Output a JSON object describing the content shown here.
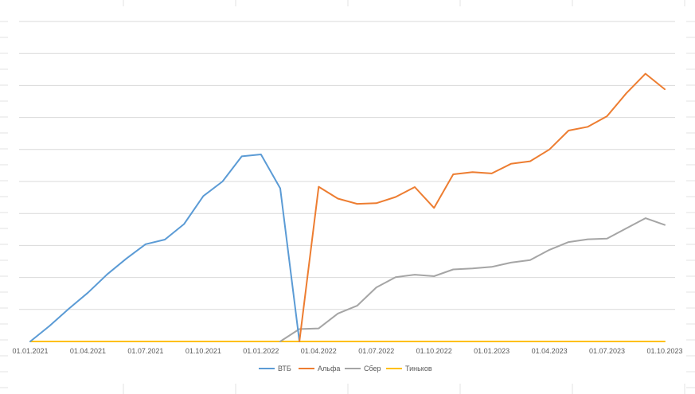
{
  "chart_data": {
    "type": "line",
    "title": "",
    "xlabel": "",
    "ylabel": "",
    "x_tick_labels": [
      "01.01.2021",
      "01.04.2021",
      "01.07.2021",
      "01.10.2021",
      "01.01.2022",
      "01.04.2022",
      "01.07.2022",
      "01.10.2022",
      "01.01.2023",
      "01.04.2023",
      "01.07.2023",
      "01.10.2023"
    ],
    "x": [
      "01.01.2021",
      "01.02.2021",
      "01.03.2021",
      "01.04.2021",
      "01.05.2021",
      "01.06.2021",
      "01.07.2021",
      "01.08.2021",
      "01.09.2021",
      "01.10.2021",
      "01.11.2021",
      "01.12.2021",
      "01.01.2022",
      "01.02.2022",
      "01.03.2022",
      "01.04.2022",
      "01.05.2022",
      "01.06.2022",
      "01.07.2022",
      "01.08.2022",
      "01.09.2022",
      "01.10.2022",
      "01.11.2022",
      "01.12.2022",
      "01.01.2023",
      "01.02.2023",
      "01.03.2023",
      "01.04.2023",
      "01.05.2023",
      "01.06.2023",
      "01.07.2023",
      "01.08.2023",
      "01.09.2023",
      "01.10.2023",
      "01.11.2023"
    ],
    "y_gridlines": 10,
    "ylim": [
      0,
      10.3
    ],
    "grid": true,
    "legend_position": "bottom",
    "series": [
      {
        "name": "ВТБ",
        "color": "#5B9BD5",
        "values": [
          0,
          0.5,
          1.05,
          1.57,
          2.16,
          2.67,
          3.13,
          3.28,
          3.78,
          4.68,
          5.15,
          5.96,
          6.02,
          4.93,
          0,
          null,
          null,
          null,
          null,
          null,
          null,
          null,
          null,
          null,
          null,
          null,
          null,
          null,
          null,
          null,
          null,
          null,
          null,
          null,
          null
        ]
      },
      {
        "name": "Альфа",
        "color": "#ED7D31",
        "values": [
          null,
          null,
          null,
          null,
          null,
          null,
          null,
          null,
          null,
          null,
          null,
          null,
          null,
          null,
          0,
          4.98,
          4.6,
          4.43,
          4.45,
          4.65,
          4.97,
          4.3,
          5.38,
          5.45,
          5.41,
          5.72,
          5.8,
          6.18,
          6.79,
          6.91,
          7.25,
          7.99,
          8.62,
          8.12,
          null
        ]
      },
      {
        "name": "Сбер",
        "color": "#A5A5A5",
        "values": [
          null,
          null,
          null,
          null,
          null,
          null,
          null,
          null,
          null,
          null,
          null,
          null,
          null,
          0,
          0.4,
          0.42,
          0.9,
          1.15,
          1.74,
          2.07,
          2.15,
          2.1,
          2.32,
          2.35,
          2.4,
          2.54,
          2.62,
          2.95,
          3.2,
          3.29,
          3.31,
          3.64,
          3.97,
          3.75,
          null
        ]
      },
      {
        "name": "Тиньков",
        "color": "#FFC000",
        "values": [
          0,
          0,
          0,
          0,
          0,
          0,
          0,
          0,
          0,
          0,
          0,
          0,
          0,
          0,
          0,
          0,
          0,
          0,
          0,
          0,
          0,
          0,
          0,
          0,
          0,
          0,
          0,
          0,
          0,
          0,
          0,
          0,
          0,
          0,
          null
        ]
      }
    ]
  }
}
